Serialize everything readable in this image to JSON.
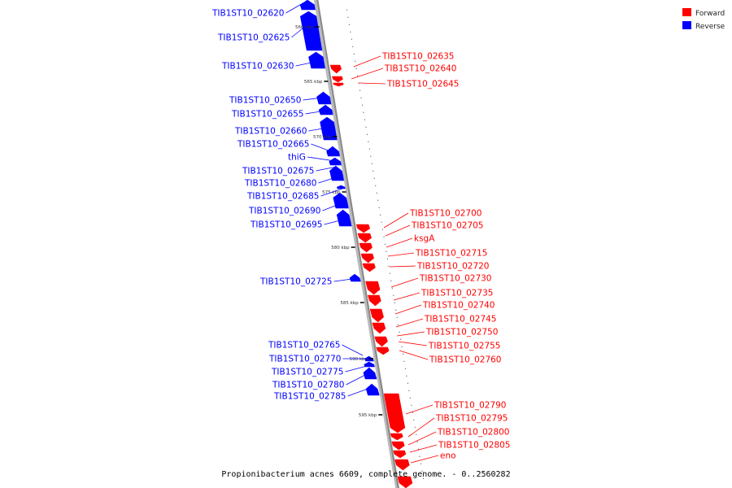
{
  "colors": {
    "forward": "#ff0000",
    "reverse": "#0000ff",
    "backbone": "#888888"
  },
  "legend": [
    {
      "label": "Forward",
      "color": "#ff0000"
    },
    {
      "label": "Reverse",
      "color": "#0000ff"
    }
  ],
  "caption": "Propionibacterium acnes 6609, complete genome. - 0..2560282",
  "ticks": [
    "560 kbp",
    "565 kbp",
    "570 kbp",
    "575 kbp",
    "580 kbp",
    "585 kbp",
    "590 kbp",
    "595 kbp"
  ],
  "reverse_genes": [
    "TIB1ST10_02620",
    "TIB1ST10_02625",
    "TIB1ST10_02630",
    "TIB1ST10_02650",
    "TIB1ST10_02655",
    "TIB1ST10_02660",
    "TIB1ST10_02665",
    "thiG",
    "TIB1ST10_02675",
    "TIB1ST10_02680",
    "TIB1ST10_02685",
    "TIB1ST10_02690",
    "TIB1ST10_02695",
    "TIB1ST10_02725",
    "TIB1ST10_02765",
    "TIB1ST10_02770",
    "TIB1ST10_02775",
    "TIB1ST10_02780",
    "TIB1ST10_02785"
  ],
  "forward_genes": [
    "TIB1ST10_02635",
    "TIB1ST10_02640",
    "TIB1ST10_02645",
    "TIB1ST10_02700",
    "TIB1ST10_02705",
    "ksgA",
    "TIB1ST10_02715",
    "TIB1ST10_02720",
    "TIB1ST10_02730",
    "TIB1ST10_02735",
    "TIB1ST10_02740",
    "TIB1ST10_02745",
    "TIB1ST10_02750",
    "TIB1ST10_02755",
    "TIB1ST10_02760",
    "TIB1ST10_02790",
    "TIB1ST10_02795",
    "TIB1ST10_02800",
    "TIB1ST10_02805",
    "eno"
  ]
}
